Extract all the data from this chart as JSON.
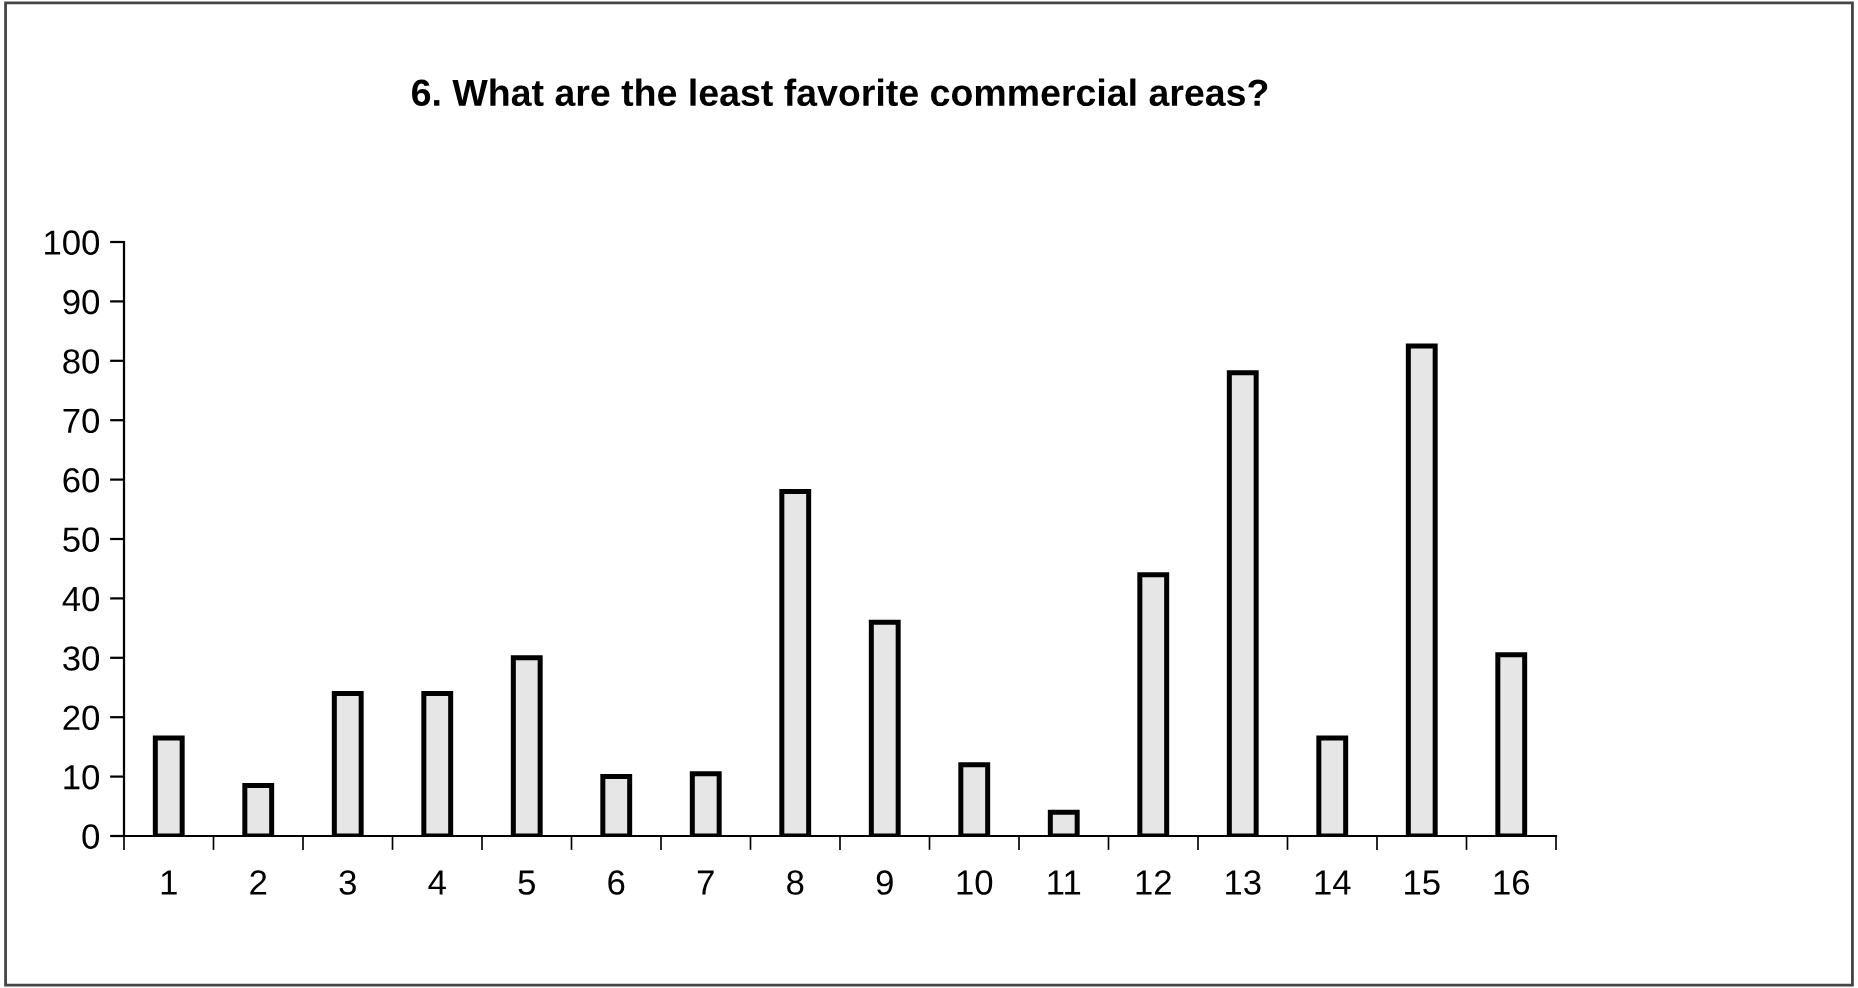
{
  "chart_data": {
    "type": "bar",
    "title": "6. What are the least favorite commercial areas?",
    "categories": [
      "1",
      "2",
      "3",
      "4",
      "5",
      "6",
      "7",
      "8",
      "9",
      "10",
      "11",
      "12",
      "13",
      "14",
      "15",
      "16"
    ],
    "values": [
      16.5,
      8.5,
      24,
      24,
      30,
      10,
      10.5,
      58,
      36,
      12,
      4,
      44,
      78,
      16.5,
      82.5,
      30.5
    ],
    "color": "#e6e6e6",
    "ylim": [
      0,
      100
    ],
    "yticks": [
      0,
      10,
      20,
      30,
      40,
      50,
      60,
      70,
      80,
      90,
      100
    ],
    "grid": false,
    "legend": false
  }
}
